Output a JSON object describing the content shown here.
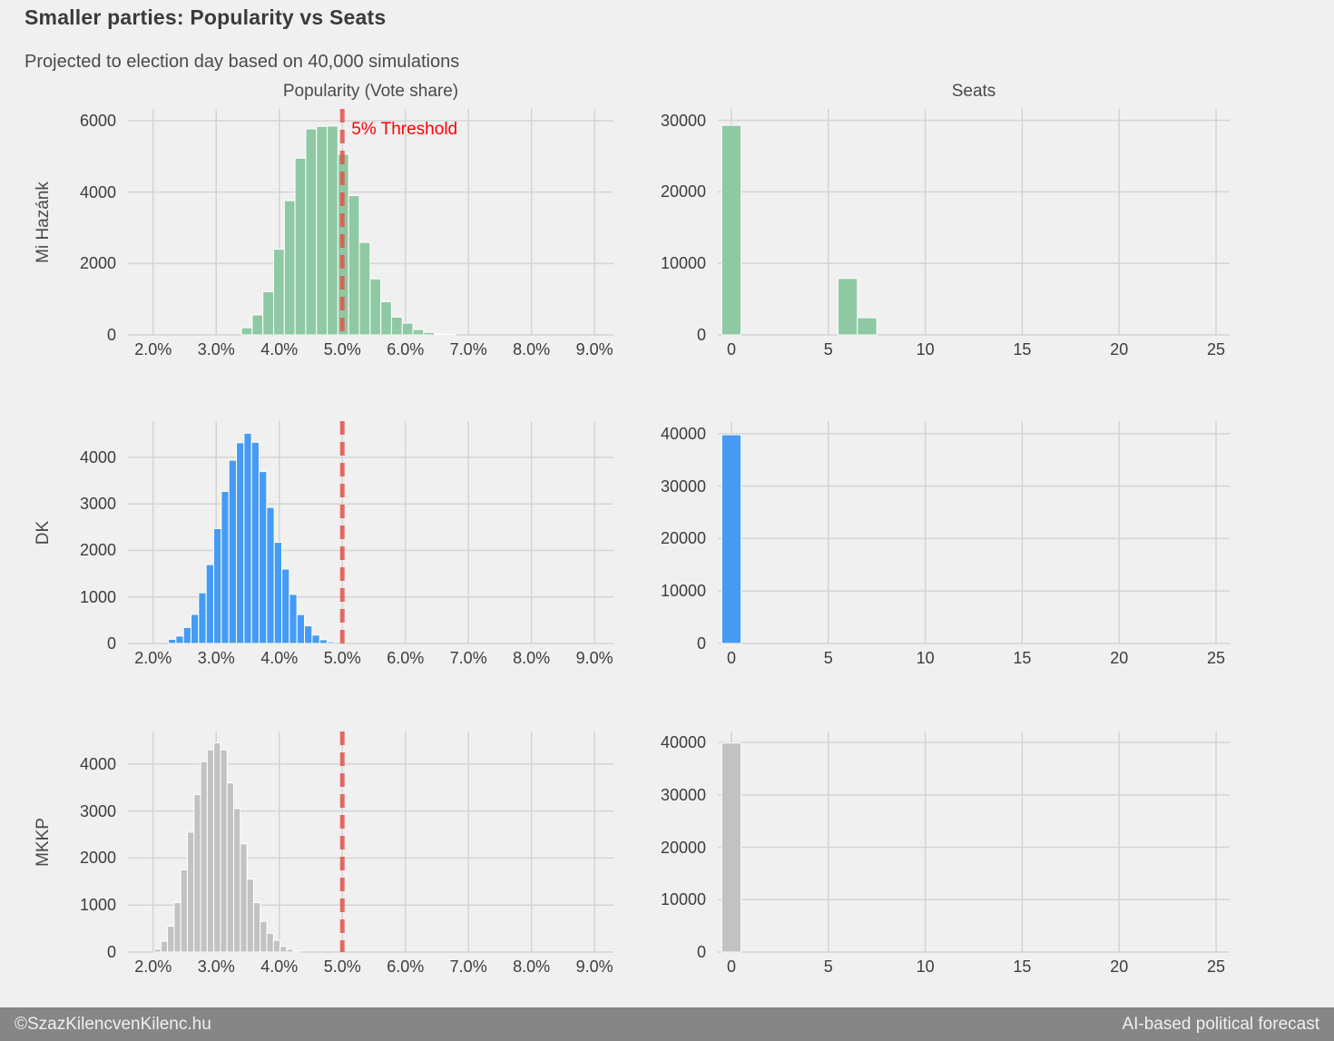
{
  "header": {
    "title": "Smaller parties: Popularity vs Seats",
    "subtitle": "Projected to election day based on 40,000 simulations"
  },
  "columns": {
    "popularity": "Popularity (Vote share)",
    "seats": "Seats"
  },
  "rows": [
    {
      "label": "Mi Hazánk"
    },
    {
      "label": "DK"
    },
    {
      "label": "MKKP"
    }
  ],
  "footer": {
    "copyright": "©SzazKilencvenKilenc.hu",
    "tagline": "AI-based political forecast"
  },
  "colors": {
    "background": "#f0f0f0",
    "gridline": "#d4d4d4",
    "bar_edge": "#ffffff",
    "mi_hazank": "#8fc9a4",
    "dk": "#459bf3",
    "mkkp": "#c2c2c2",
    "threshold_line": "#e0564c",
    "threshold_text": "#ff0000",
    "footer_bg": "#868686",
    "text_dark": "#3a3a3a",
    "text_gray": "#4a4a4a"
  },
  "chart_data": [
    {
      "id": "mi-hazank-popularity",
      "party": "Mi Hazánk",
      "type": "bar",
      "color": "#8fc9a4",
      "bar_width": 0.17,
      "x": [
        3.485,
        3.655,
        3.825,
        3.995,
        4.165,
        4.335,
        4.505,
        4.675,
        4.845,
        5.015,
        5.185,
        5.355,
        5.525,
        5.695,
        5.865,
        6.035,
        6.205,
        6.375,
        6.545,
        6.715
      ],
      "values": [
        200,
        560,
        1210,
        2400,
        3760,
        4950,
        5770,
        5840,
        5850,
        5060,
        3900,
        2590,
        1570,
        930,
        500,
        330,
        150,
        70,
        25,
        10
      ],
      "xlim": [
        1.6,
        9.3
      ],
      "ylim": [
        0,
        6330
      ],
      "xticks": [
        2,
        3,
        4,
        5,
        6,
        7,
        8,
        9
      ],
      "xtick_labels": [
        "2.0%",
        "3.0%",
        "4.0%",
        "5.0%",
        "6.0%",
        "7.0%",
        "8.0%",
        "9.0%"
      ],
      "yticks": [
        0,
        2000,
        4000,
        6000
      ],
      "ytick_labels": [
        "0",
        "2000",
        "4000",
        "6000"
      ],
      "grid": true,
      "threshold": {
        "x": 5.0,
        "label": "5% Threshold",
        "show_label": true
      }
    },
    {
      "id": "mi-hazank-seats",
      "party": "Mi Hazánk",
      "type": "bar",
      "color": "#8fc9a4",
      "bar_width": 1.0,
      "x": [
        0,
        6,
        7
      ],
      "values": [
        29300,
        7900,
        2400
      ],
      "xlim": [
        -0.7,
        25.7
      ],
      "ylim": [
        0,
        31600
      ],
      "xticks": [
        0,
        5,
        10,
        15,
        20,
        25
      ],
      "xtick_labels": [
        "0",
        "5",
        "10",
        "15",
        "20",
        "25"
      ],
      "yticks": [
        0,
        10000,
        20000,
        30000
      ],
      "ytick_labels": [
        "0",
        "10000",
        "20000",
        "30000"
      ],
      "grid": true,
      "threshold": null
    },
    {
      "id": "dk-popularity",
      "party": "DK",
      "type": "bar",
      "color": "#459bf3",
      "bar_width": 0.119,
      "x": [
        2.3,
        2.42,
        2.54,
        2.66,
        2.78,
        2.9,
        3.02,
        3.14,
        3.26,
        3.38,
        3.5,
        3.62,
        3.74,
        3.86,
        3.98,
        4.1,
        4.22,
        4.34,
        4.46,
        4.58,
        4.7,
        4.82
      ],
      "values": [
        90,
        160,
        345,
        625,
        1090,
        1695,
        2470,
        3270,
        3940,
        4315,
        4520,
        4325,
        3695,
        2925,
        2175,
        1600,
        1055,
        620,
        380,
        180,
        80,
        35
      ],
      "xlim": [
        1.6,
        9.3
      ],
      "ylim": [
        0,
        4780
      ],
      "xticks": [
        2,
        3,
        4,
        5,
        6,
        7,
        8,
        9
      ],
      "xtick_labels": [
        "2.0%",
        "3.0%",
        "4.0%",
        "5.0%",
        "6.0%",
        "7.0%",
        "8.0%",
        "9.0%"
      ],
      "yticks": [
        0,
        1000,
        2000,
        3000,
        4000
      ],
      "ytick_labels": [
        "0",
        "1000",
        "2000",
        "3000",
        "4000"
      ],
      "grid": true,
      "threshold": {
        "x": 5.0,
        "label": "5% Threshold",
        "show_label": false
      }
    },
    {
      "id": "dk-seats",
      "party": "DK",
      "type": "bar",
      "color": "#459bf3",
      "bar_width": 1.0,
      "x": [
        0
      ],
      "values": [
        39800
      ],
      "xlim": [
        -0.7,
        25.7
      ],
      "ylim": [
        0,
        42400
      ],
      "xticks": [
        0,
        5,
        10,
        15,
        20,
        25
      ],
      "xtick_labels": [
        "0",
        "5",
        "10",
        "15",
        "20",
        "25"
      ],
      "yticks": [
        0,
        10000,
        20000,
        30000,
        40000
      ],
      "ytick_labels": [
        "0",
        "10000",
        "20000",
        "30000",
        "40000"
      ],
      "grid": true,
      "threshold": null
    },
    {
      "id": "mkkp-popularity",
      "party": "MKKP",
      "type": "bar",
      "color": "#c2c2c2",
      "bar_width": 0.105,
      "x": [
        2.07,
        2.175,
        2.28,
        2.385,
        2.49,
        2.595,
        2.7,
        2.805,
        2.91,
        3.015,
        3.12,
        3.225,
        3.33,
        3.435,
        3.54,
        3.645,
        3.75,
        3.855,
        3.96,
        4.065,
        4.17,
        4.275
      ],
      "values": [
        60,
        230,
        550,
        1050,
        1750,
        2550,
        3350,
        4050,
        4300,
        4450,
        4300,
        3600,
        3050,
        2300,
        1550,
        1050,
        650,
        400,
        250,
        120,
        60,
        25
      ],
      "xlim": [
        1.6,
        9.3
      ],
      "ylim": [
        0,
        4690
      ],
      "xticks": [
        2,
        3,
        4,
        5,
        6,
        7,
        8,
        9
      ],
      "xtick_labels": [
        "2.0%",
        "3.0%",
        "4.0%",
        "5.0%",
        "6.0%",
        "7.0%",
        "8.0%",
        "9.0%"
      ],
      "yticks": [
        0,
        1000,
        2000,
        3000,
        4000
      ],
      "ytick_labels": [
        "0",
        "1000",
        "2000",
        "3000",
        "4000"
      ],
      "grid": true,
      "threshold": {
        "x": 5.0,
        "label": "5% Threshold",
        "show_label": false
      }
    },
    {
      "id": "mkkp-seats",
      "party": "MKKP",
      "type": "bar",
      "color": "#c2c2c2",
      "bar_width": 1.0,
      "x": [
        0
      ],
      "values": [
        39900
      ],
      "xlim": [
        -0.7,
        25.7
      ],
      "ylim": [
        0,
        42100
      ],
      "xticks": [
        0,
        5,
        10,
        15,
        20,
        25
      ],
      "xtick_labels": [
        "0",
        "5",
        "10",
        "15",
        "20",
        "25"
      ],
      "yticks": [
        0,
        10000,
        20000,
        30000,
        40000
      ],
      "ytick_labels": [
        "0",
        "10000",
        "20000",
        "30000",
        "40000"
      ],
      "grid": true,
      "threshold": null
    }
  ]
}
